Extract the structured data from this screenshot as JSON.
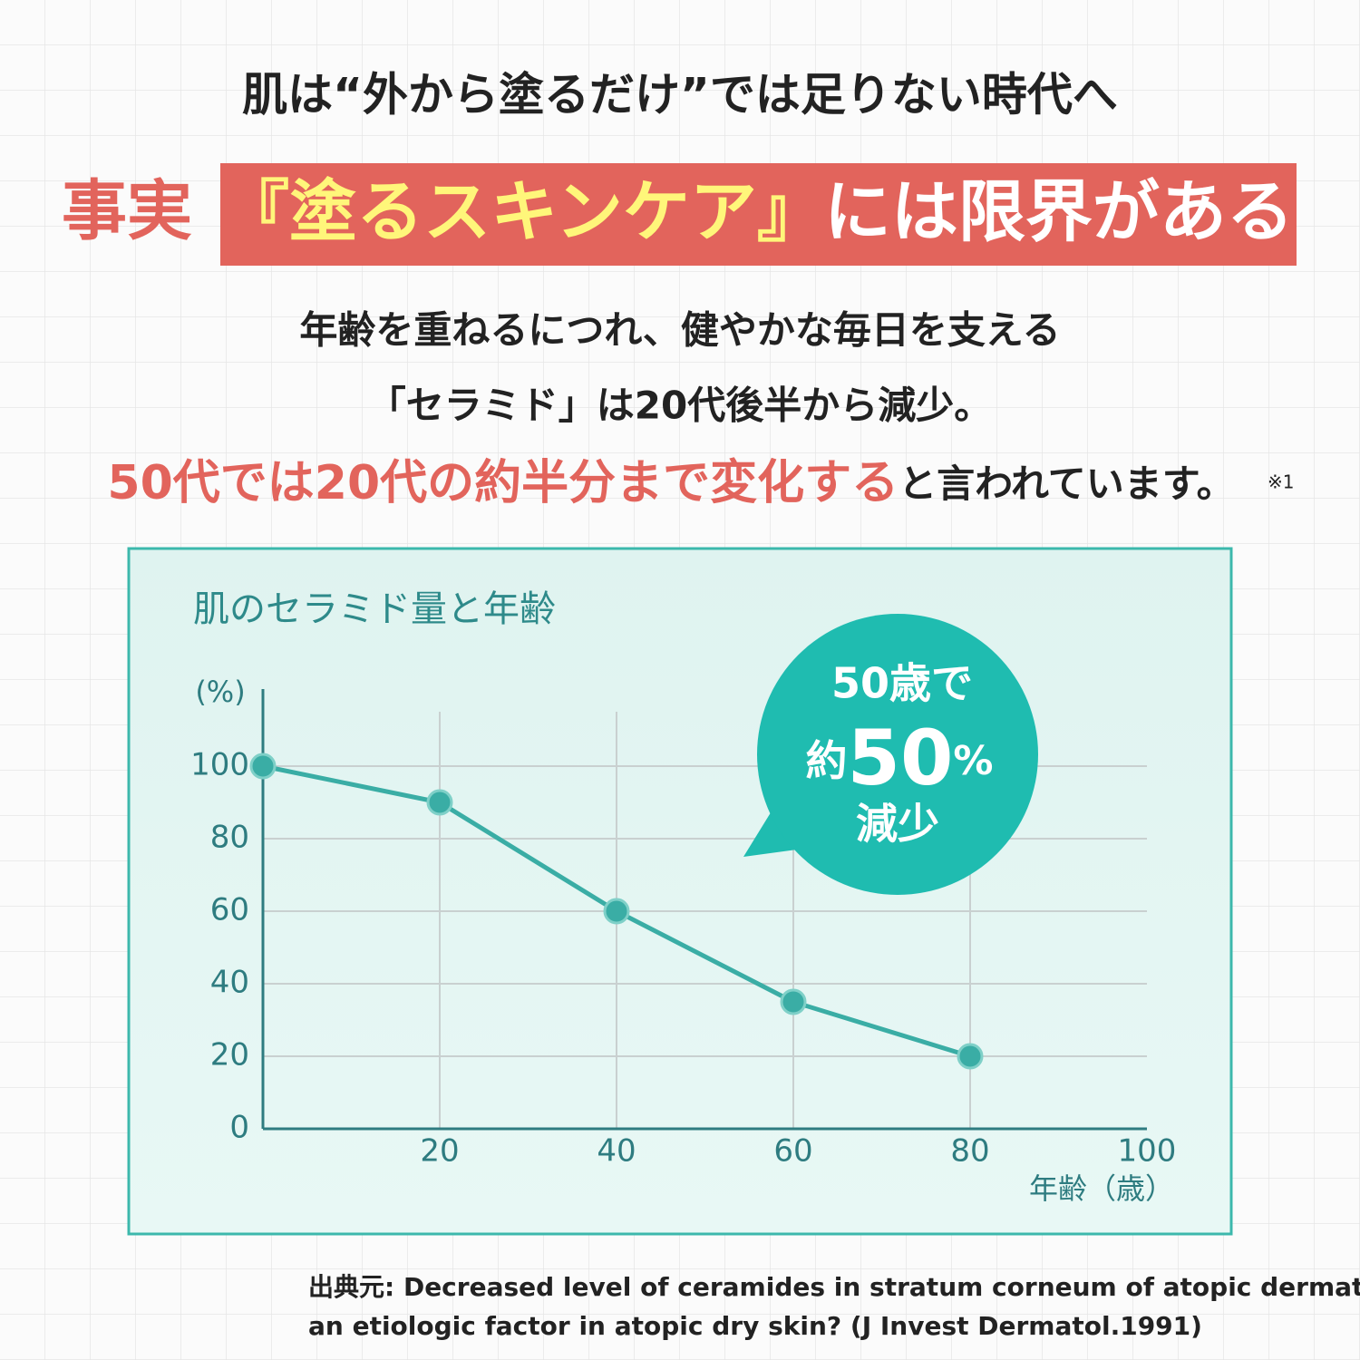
{
  "header": {
    "lead": "肌は“外から塗るだけ”では足りない時代へ",
    "fact": "事実",
    "banner_highlight": "『塗るスキンケア』",
    "banner_rest": "には限界がある",
    "body_line1": "年齢を重ねるにつれ、健やかな毎日を支える",
    "body_line2": "「セラミド」は20代後半から減少。",
    "emphasis": "50代では20代の約半分まで変化する",
    "emphasis_rest": "と言われています。",
    "footnote_mark": "※1"
  },
  "chart_data": {
    "type": "line",
    "title": "肌のセラミド量と年齢",
    "y_label": "(%)",
    "x_label": "年齢（歳）",
    "x": [
      0,
      20,
      40,
      60,
      80
    ],
    "values": [
      100,
      90,
      60,
      35,
      20
    ],
    "color": "#3aada5",
    "xlim": [
      0,
      100
    ],
    "xticks": [
      20,
      40,
      60,
      80,
      100
    ],
    "ylim": [
      0,
      120
    ],
    "yticks": [
      0,
      20,
      40,
      60,
      80,
      100
    ],
    "grid": true,
    "callout": {
      "line1": "50歳で",
      "prefix": "約",
      "number": 50,
      "unit": "%",
      "line3": "減少"
    }
  },
  "source": {
    "line1": "出典元: Decreased level of ceramides in stratum corneum of atopic dermatitis:",
    "line2": "an etiologic factor in atopic dry skin? (J Invest Dermatol.1991)"
  }
}
